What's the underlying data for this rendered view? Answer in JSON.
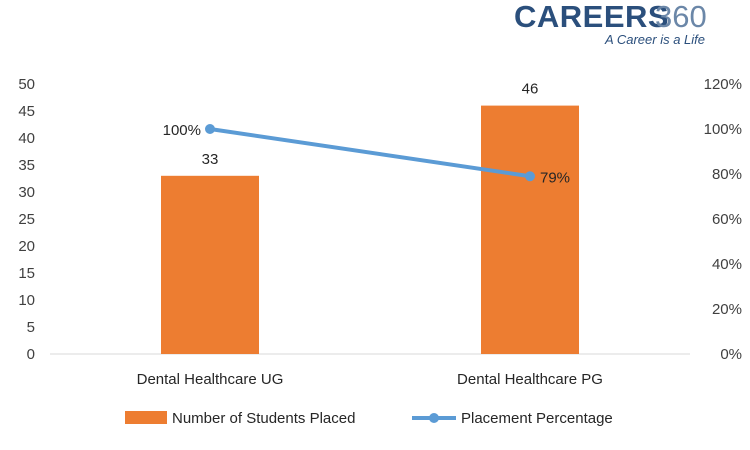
{
  "brand": {
    "name": "CAREERS",
    "number": "360",
    "tagline": "A Career is a Life"
  },
  "chart_data": {
    "type": "bar",
    "categories": [
      "Dental Healthcare UG",
      "Dental Healthcare PG"
    ],
    "series": [
      {
        "name": "Number of Students Placed",
        "type": "bar",
        "axis": "left",
        "values": [
          33,
          46
        ],
        "labels": [
          "33",
          "46"
        ],
        "color": "#ed7d31"
      },
      {
        "name": "Placement Percentage",
        "type": "line",
        "axis": "right",
        "values": [
          100,
          79
        ],
        "labels": [
          "100%",
          "79%"
        ],
        "color": "#5b9bd5"
      }
    ],
    "y_left": {
      "min": 0,
      "max": 50,
      "step": 5,
      "ticks": [
        "0",
        "5",
        "10",
        "15",
        "20",
        "25",
        "30",
        "35",
        "40",
        "45",
        "50"
      ]
    },
    "y_right": {
      "min": 0,
      "max": 120,
      "step": 20,
      "ticks": [
        "0%",
        "20%",
        "40%",
        "60%",
        "80%",
        "100%",
        "120%"
      ]
    },
    "grid": false,
    "legend_position": "bottom"
  }
}
